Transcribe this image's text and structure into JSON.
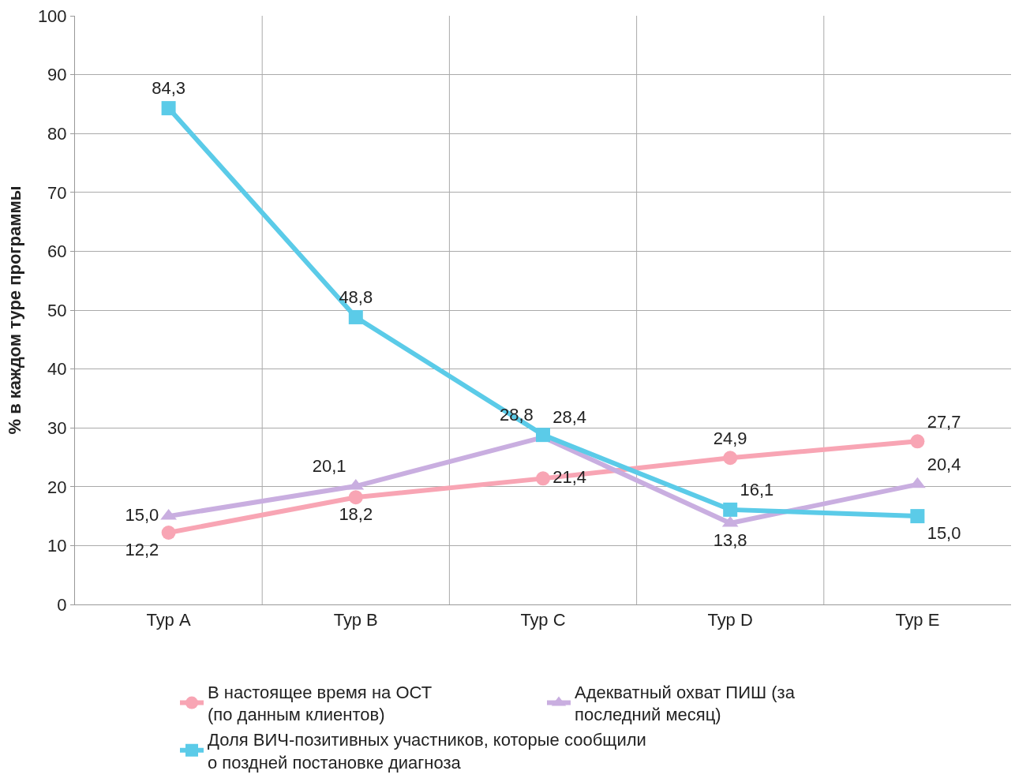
{
  "chart_data": {
    "type": "line",
    "ylabel": "% в каждом туре программы",
    "categories": [
      "Тур A",
      "Тур B",
      "Тур C",
      "Тур D",
      "Тур E"
    ],
    "series": [
      {
        "name": "В настоящее время на ОСТ (по данным клиентов)",
        "color": "#f8a5b4",
        "marker": "circle",
        "values": [
          12.2,
          18.2,
          21.4,
          24.9,
          27.7
        ],
        "value_labels": [
          "12,2",
          "18,2",
          "21,4",
          "24,9",
          "27,7"
        ]
      },
      {
        "name": "Адекватный охват ПИШ (за последний месяц)",
        "color": "#c9aee0",
        "marker": "triangle",
        "values": [
          15.0,
          20.1,
          28.4,
          13.8,
          20.4
        ],
        "value_labels": [
          "15,0",
          "20,1",
          "28,4",
          "13,8",
          "20,4"
        ]
      },
      {
        "name": "Доля ВИЧ-позитивных участников, которые сообщили о поздней постановке диагноза",
        "color": "#5bcbe8",
        "marker": "square",
        "values": [
          84.3,
          48.8,
          28.8,
          16.1,
          15.0
        ],
        "value_labels": [
          "84,3",
          "48,8",
          "28,8",
          "16,1",
          "15,0"
        ]
      }
    ],
    "ylim": [
      0,
      100
    ],
    "yticks": [
      0,
      10,
      20,
      30,
      40,
      50,
      60,
      70,
      80,
      90,
      100
    ],
    "grid": true,
    "legend": "bottom"
  }
}
